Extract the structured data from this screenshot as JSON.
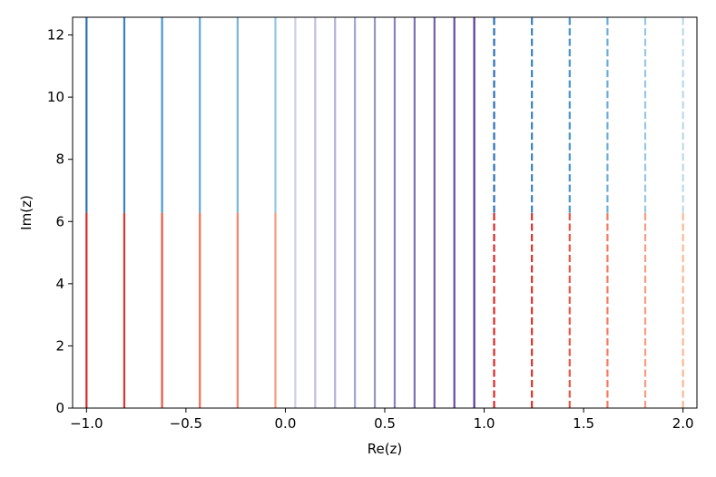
{
  "chart_data": {
    "type": "line",
    "title": "",
    "xlabel": "Re(z)",
    "ylabel": "Im(z)",
    "xlim": [
      -1.07,
      2.07
    ],
    "ylim": [
      0,
      12.57
    ],
    "xticks": [
      -1.0,
      -0.5,
      0.0,
      0.5,
      1.0,
      1.5,
      2.0
    ],
    "xtick_labels": [
      "−1.0",
      "−0.5",
      "0.0",
      "0.5",
      "1.0",
      "1.5",
      "2.0"
    ],
    "yticks": [
      0,
      2,
      4,
      6,
      8,
      10,
      12
    ],
    "ytick_labels": [
      "0",
      "2",
      "4",
      "6",
      "8",
      "10",
      "12"
    ],
    "grid": false,
    "series": [
      {
        "x": -1.0,
        "segments": [
          {
            "y": [
              0,
              6.28
            ],
            "color": "#d62a28",
            "style": "solid"
          },
          {
            "y": [
              6.28,
              12.57
            ],
            "color": "#2d6fb5",
            "style": "solid"
          }
        ]
      },
      {
        "x": -0.81,
        "segments": [
          {
            "y": [
              0,
              6.28
            ],
            "color": "#e0342e",
            "style": "solid"
          },
          {
            "y": [
              6.28,
              12.57
            ],
            "color": "#3a82c4",
            "style": "solid"
          }
        ]
      },
      {
        "x": -0.62,
        "segments": [
          {
            "y": [
              0,
              6.28
            ],
            "color": "#ea5844",
            "style": "solid"
          },
          {
            "y": [
              6.28,
              12.57
            ],
            "color": "#4a95cc",
            "style": "solid"
          }
        ]
      },
      {
        "x": -0.43,
        "segments": [
          {
            "y": [
              0,
              6.28
            ],
            "color": "#f16d56",
            "style": "solid"
          },
          {
            "y": [
              6.28,
              12.57
            ],
            "color": "#5ea5d4",
            "style": "solid"
          }
        ]
      },
      {
        "x": -0.24,
        "segments": [
          {
            "y": [
              0,
              6.28
            ],
            "color": "#f7826a",
            "style": "solid"
          },
          {
            "y": [
              6.28,
              12.57
            ],
            "color": "#77b5dc",
            "style": "solid"
          }
        ]
      },
      {
        "x": -0.05,
        "segments": [
          {
            "y": [
              0,
              6.28
            ],
            "color": "#fa9a7e",
            "style": "solid"
          },
          {
            "y": [
              6.28,
              12.57
            ],
            "color": "#93c5e2",
            "style": "solid"
          }
        ]
      },
      {
        "x": 0.05,
        "segments": [
          {
            "y": [
              0,
              12.57
            ],
            "color": "#cccde4",
            "style": "solid"
          }
        ]
      },
      {
        "x": 0.15,
        "segments": [
          {
            "y": [
              0,
              12.57
            ],
            "color": "#c0bfdd",
            "style": "solid"
          }
        ]
      },
      {
        "x": 0.25,
        "segments": [
          {
            "y": [
              0,
              12.57
            ],
            "color": "#b2b1d6",
            "style": "solid"
          }
        ]
      },
      {
        "x": 0.35,
        "segments": [
          {
            "y": [
              0,
              12.57
            ],
            "color": "#a5a3cf",
            "style": "solid"
          }
        ]
      },
      {
        "x": 0.45,
        "segments": [
          {
            "y": [
              0,
              12.57
            ],
            "color": "#9894c6",
            "style": "solid"
          }
        ]
      },
      {
        "x": 0.55,
        "segments": [
          {
            "y": [
              0,
              12.57
            ],
            "color": "#8a84bd",
            "style": "solid"
          }
        ]
      },
      {
        "x": 0.65,
        "segments": [
          {
            "y": [
              0,
              12.57
            ],
            "color": "#7e72b4",
            "style": "solid"
          }
        ]
      },
      {
        "x": 0.75,
        "segments": [
          {
            "y": [
              0,
              12.57
            ],
            "color": "#7260ab",
            "style": "solid"
          }
        ]
      },
      {
        "x": 0.85,
        "segments": [
          {
            "y": [
              0,
              12.57
            ],
            "color": "#664ea2",
            "style": "solid"
          }
        ]
      },
      {
        "x": 0.95,
        "segments": [
          {
            "y": [
              0,
              12.57
            ],
            "color": "#5a3b99",
            "style": "solid"
          }
        ]
      },
      {
        "x": 1.05,
        "segments": [
          {
            "y": [
              0,
              6.28
            ],
            "color": "#d62a28",
            "style": "dashed"
          },
          {
            "y": [
              6.28,
              12.57
            ],
            "color": "#2d6fb5",
            "style": "dashed"
          }
        ]
      },
      {
        "x": 1.24,
        "segments": [
          {
            "y": [
              0,
              6.28
            ],
            "color": "#e0342e",
            "style": "dashed"
          },
          {
            "y": [
              6.28,
              12.57
            ],
            "color": "#3a82c4",
            "style": "dashed"
          }
        ]
      },
      {
        "x": 1.43,
        "segments": [
          {
            "y": [
              0,
              6.28
            ],
            "color": "#ea5844",
            "style": "dashed"
          },
          {
            "y": [
              6.28,
              12.57
            ],
            "color": "#4a95cc",
            "style": "dashed"
          }
        ]
      },
      {
        "x": 1.62,
        "segments": [
          {
            "y": [
              0,
              6.28
            ],
            "color": "#f57a5e",
            "style": "dashed"
          },
          {
            "y": [
              6.28,
              12.57
            ],
            "color": "#6aacd7",
            "style": "dashed"
          }
        ]
      },
      {
        "x": 1.81,
        "segments": [
          {
            "y": [
              0,
              6.28
            ],
            "color": "#fb9b7f",
            "style": "dashed"
          },
          {
            "y": [
              6.28,
              12.57
            ],
            "color": "#98c7e3",
            "style": "dashed"
          }
        ]
      },
      {
        "x": 2.0,
        "segments": [
          {
            "y": [
              0,
              6.28
            ],
            "color": "#fcb796",
            "style": "dashed"
          },
          {
            "y": [
              6.28,
              12.57
            ],
            "color": "#bcd8ec",
            "style": "dashed"
          }
        ]
      }
    ]
  }
}
